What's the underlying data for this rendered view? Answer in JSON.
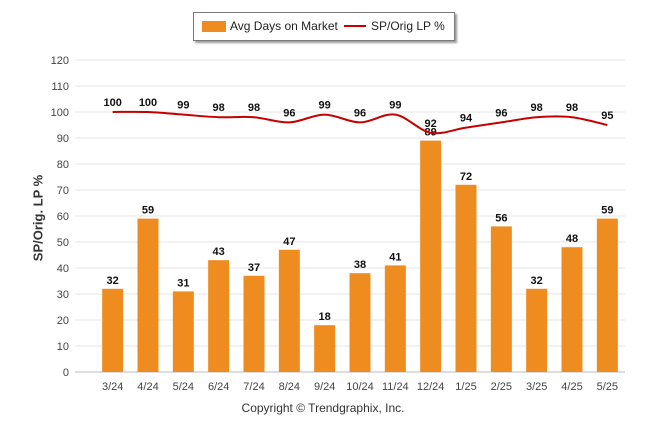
{
  "chart_data": {
    "type": "bar",
    "categories": [
      "3/24",
      "4/24",
      "5/24",
      "6/24",
      "7/24",
      "8/24",
      "9/24",
      "10/24",
      "11/24",
      "12/24",
      "1/25",
      "2/25",
      "3/25",
      "4/25",
      "5/25"
    ],
    "series": [
      {
        "name": "Avg Days on Market",
        "type": "bar",
        "color": "#ee8c1f",
        "values": [
          32,
          59,
          31,
          43,
          37,
          47,
          18,
          38,
          41,
          89,
          72,
          56,
          32,
          48,
          59
        ]
      },
      {
        "name": "SP/Orig LP %",
        "type": "line",
        "color": "#c40000",
        "values": [
          100,
          100,
          99,
          98,
          98,
          96,
          99,
          96,
          99,
          92,
          94,
          96,
          98,
          98,
          95
        ]
      }
    ],
    "ylabel": "SP/Orig. LP %",
    "ylim": [
      0,
      120
    ],
    "yticks": [
      0,
      10,
      20,
      30,
      40,
      50,
      60,
      70,
      80,
      90,
      100,
      110,
      120
    ],
    "grid": true,
    "legend_position": "top-center"
  },
  "legend": {
    "bar_label": "Avg Days on Market",
    "line_label": "SP/Orig LP %"
  },
  "footer": {
    "copyright": "Copyright © Trendgraphix, Inc."
  }
}
